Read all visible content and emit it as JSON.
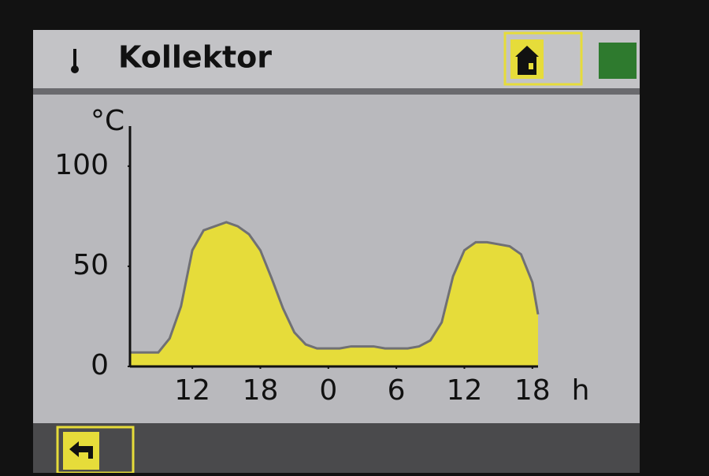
{
  "chart_data": {
    "type": "area",
    "title": "Kollektor",
    "y_label": "°C",
    "x_label": "h",
    "x": [
      6.5,
      7,
      8,
      9,
      10,
      11,
      12,
      13,
      14,
      15,
      16,
      17,
      18,
      19,
      20,
      21,
      22,
      23,
      24,
      25,
      26,
      27,
      28,
      29,
      30,
      31,
      32,
      33,
      34,
      35,
      36,
      37,
      38,
      39,
      40,
      41,
      42,
      42.5
    ],
    "values": [
      7,
      7,
      7,
      7,
      14,
      30,
      58,
      68,
      70,
      72,
      70,
      66,
      58,
      44,
      29,
      17,
      11,
      9,
      9,
      9,
      10,
      10,
      10,
      9,
      9,
      9,
      10,
      13,
      22,
      45,
      58,
      62,
      62,
      61,
      60,
      56,
      42,
      26
    ],
    "color": "#e6dc3a",
    "xlim": [
      6.5,
      42.5
    ],
    "xticks": [
      12,
      18,
      {
        "value": 24,
        "label": "0"
      },
      {
        "value": 30,
        "label": "6"
      },
      {
        "value": 36,
        "label": "12"
      },
      {
        "value": 42,
        "label": "18"
      }
    ],
    "ylim": [
      0,
      120
    ],
    "yticks": [
      0,
      50,
      100
    ]
  }
}
